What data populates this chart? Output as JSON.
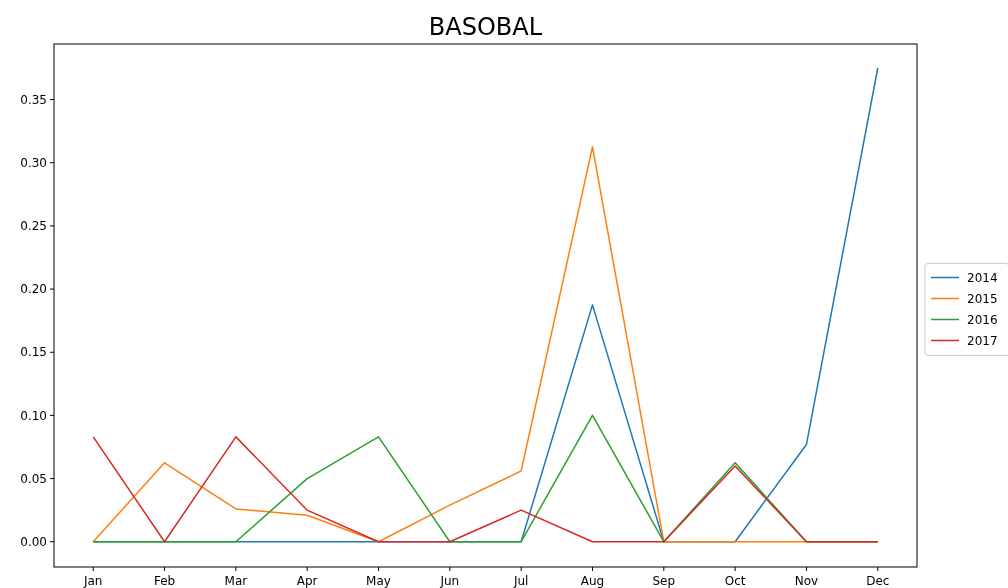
{
  "chart_data": {
    "type": "line",
    "title": "BASOBAL",
    "categories": [
      "Jan",
      "Feb",
      "Mar",
      "Apr",
      "May",
      "Jun",
      "Jul",
      "Aug",
      "Sep",
      "Oct",
      "Nov",
      "Dec"
    ],
    "series": [
      {
        "name": "2014",
        "color": "#1f77b4",
        "values": [
          0,
          0,
          0,
          0,
          0,
          0,
          0,
          0.1875,
          0,
          0,
          0.077,
          0.375
        ]
      },
      {
        "name": "2015",
        "color": "#ff7f0e",
        "values": [
          0,
          0.0625,
          0.026,
          0.021,
          0,
          0.029,
          0.056,
          0.3125,
          0,
          0,
          0,
          0
        ]
      },
      {
        "name": "2016",
        "color": "#2ca02c",
        "values": [
          0,
          0,
          0,
          0.05,
          0.083,
          0,
          0,
          0.1,
          0,
          0.0625,
          0,
          0
        ]
      },
      {
        "name": "2017",
        "color": "#d62728",
        "values": [
          0.083,
          0,
          0.083,
          0.025,
          0,
          0,
          0.025,
          0,
          0,
          0.06,
          0,
          0
        ]
      }
    ],
    "ylim": [
      -0.02,
      0.394
    ],
    "yticks": [
      {
        "value": 0,
        "label": "0.00"
      },
      0.05,
      {
        "value": 0.1,
        "label": "0.10"
      },
      0.15,
      {
        "value": 0.2,
        "label": "0.20"
      },
      0.25,
      {
        "value": 0.3,
        "label": "0.30"
      },
      0.35
    ],
    "legend": "right",
    "grid": false
  }
}
